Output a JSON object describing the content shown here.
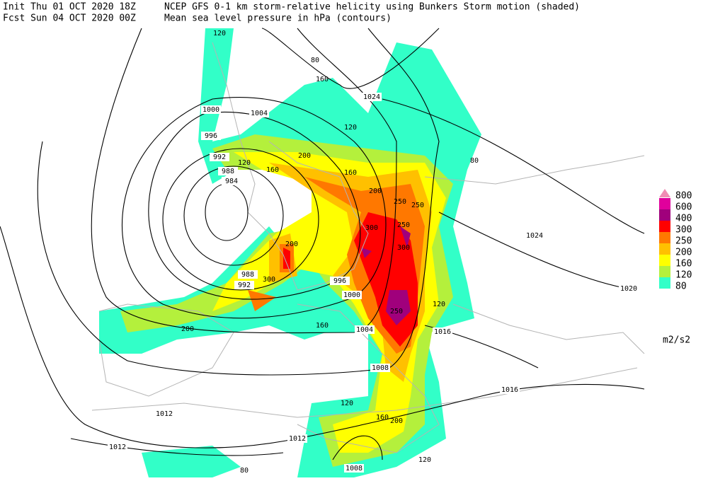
{
  "header": {
    "init": "Init  Thu 01 OCT 2020 18Z",
    "forecast": "Fcst Sun 04 OCT 2020 00Z",
    "field_shaded": "NCEP GFS 0-1 km storm-relative helicity using Bunkers Storm motion (shaded)",
    "field_contours": "Mean sea level pressure in hPa (contours)"
  },
  "legend": {
    "unit": "m2/s2",
    "entries": [
      {
        "label": "800",
        "color": "#f08cb4"
      },
      {
        "label": "600",
        "color": "#e0009c"
      },
      {
        "label": "400",
        "color": "#a0007c"
      },
      {
        "label": "300",
        "color": "#ff0000"
      },
      {
        "label": "250",
        "color": "#ff7800"
      },
      {
        "label": "200",
        "color": "#ffc000"
      },
      {
        "label": "160",
        "color": "#ffff00"
      },
      {
        "label": "120",
        "color": "#b4f03c"
      },
      {
        "label": "80",
        "color": "#32ffc8"
      }
    ]
  },
  "contour_labels": [
    "1024",
    "1004",
    "1000",
    "996",
    "992",
    "988",
    "984",
    "988",
    "992",
    "996",
    "1000",
    "1004",
    "1008",
    "1016",
    "1024",
    "1020",
    "1016",
    "1012",
    "1012",
    "1012",
    "1008"
  ],
  "shade_labels": [
    "120",
    "80",
    "160",
    "120",
    "200",
    "160",
    "120",
    "160",
    "200",
    "250",
    "300",
    "250",
    "300",
    "250",
    "200",
    "300",
    "250",
    "120",
    "160",
    "200",
    "120",
    "160",
    "200",
    "80",
    "120",
    "80"
  ]
}
